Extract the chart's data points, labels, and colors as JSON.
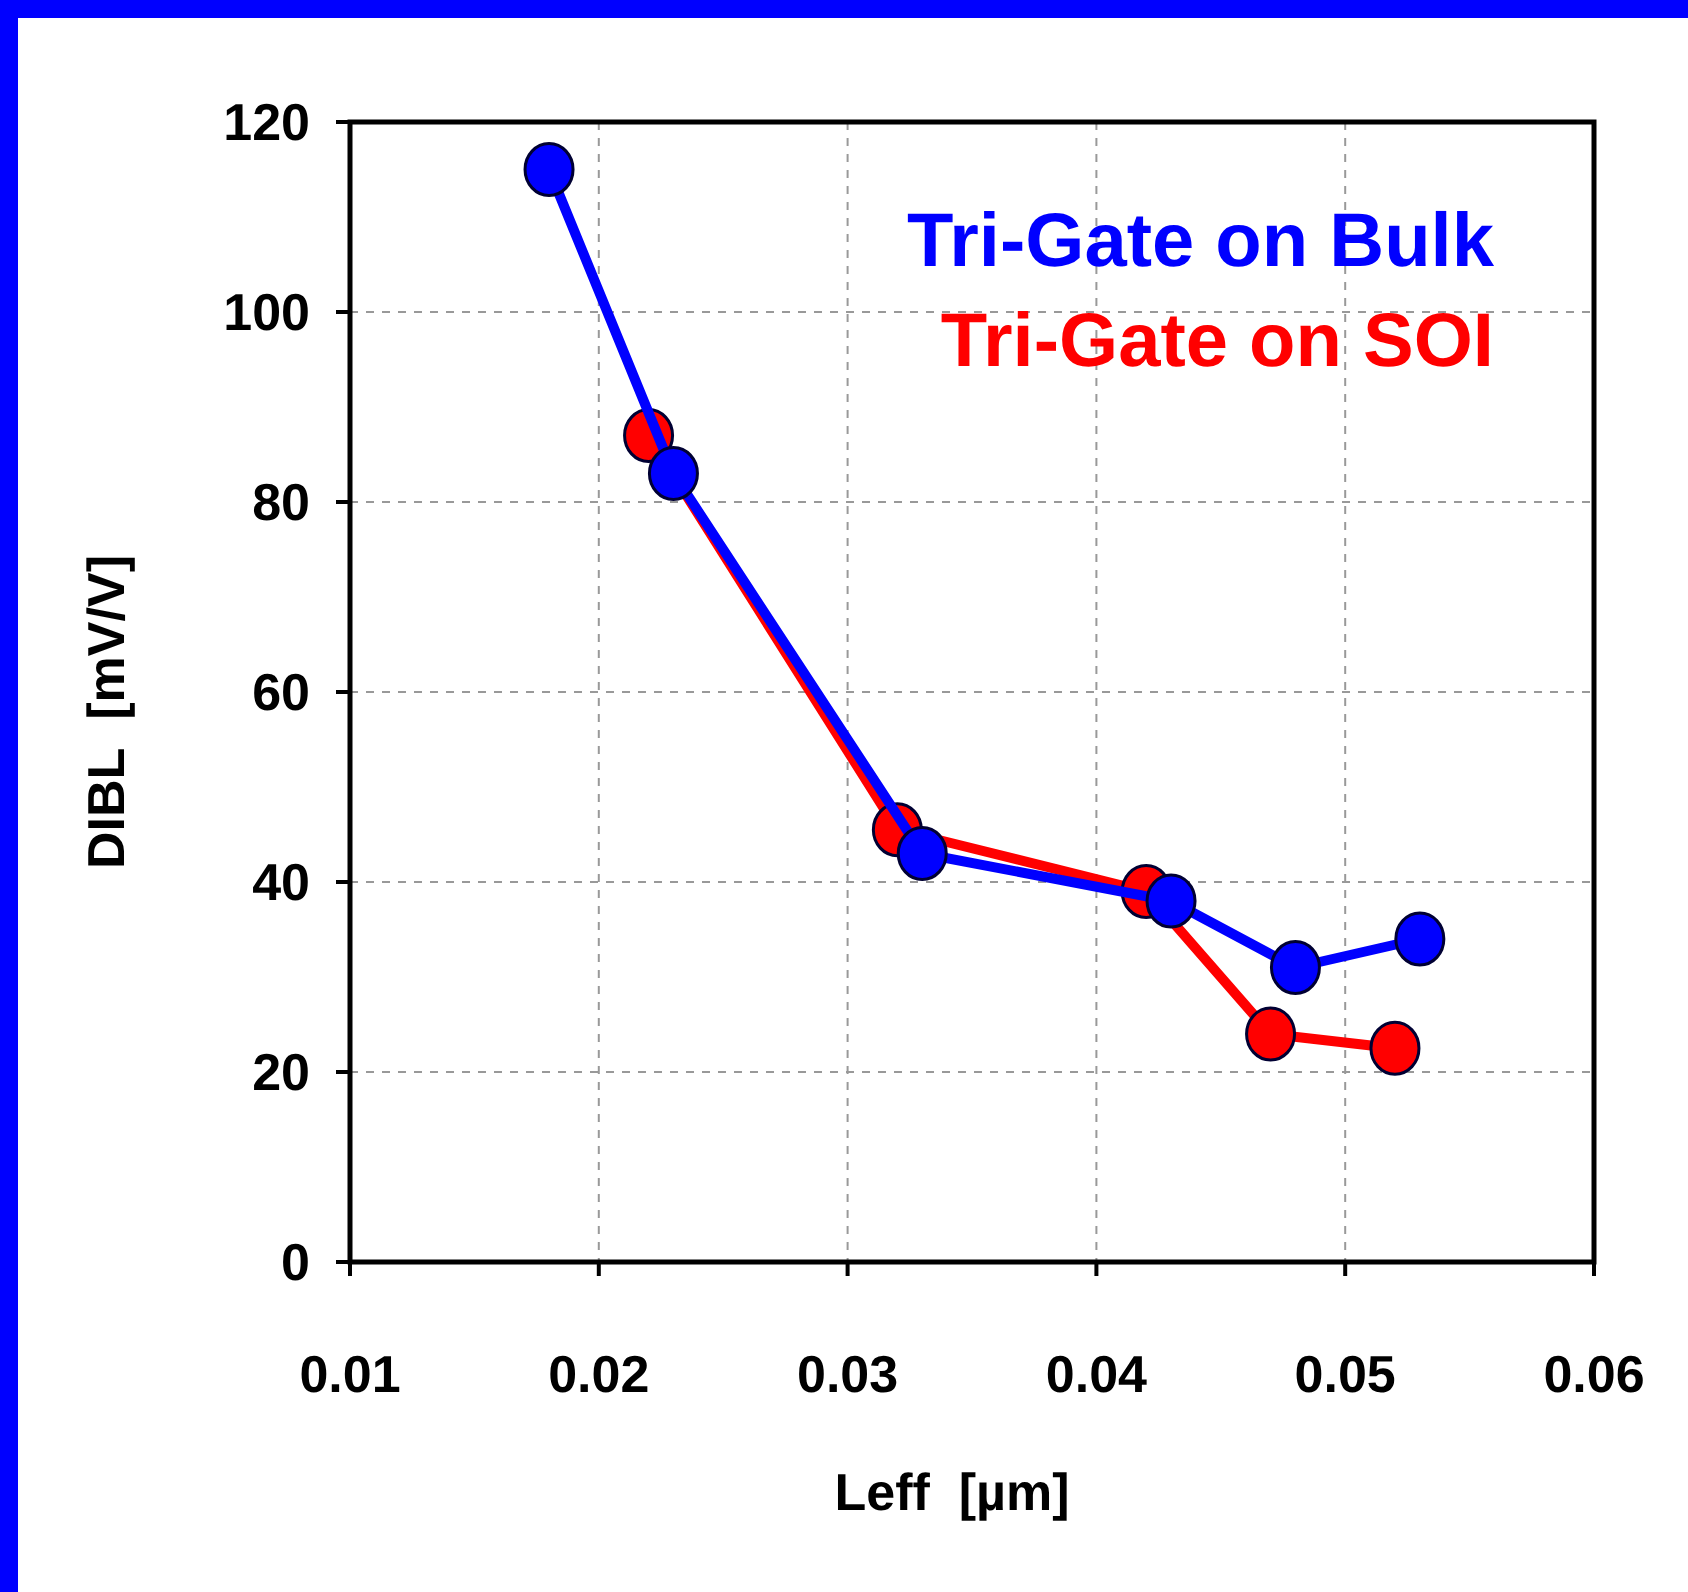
{
  "chart_data": {
    "type": "line",
    "xlabel": "Leff  [µm]",
    "ylabel": "DIBL  [mV/V]",
    "xlim": [
      0.01,
      0.06
    ],
    "xticks": [
      0.01,
      0.02,
      0.03,
      0.04,
      0.05,
      0.06
    ],
    "ylim": [
      0,
      120
    ],
    "yticks": [
      0,
      20,
      40,
      60,
      80,
      100,
      120
    ],
    "grid": true,
    "legend": "top right",
    "marker": "circle",
    "series": [
      {
        "name": "Tri-Gate on SOI",
        "color": "#ff0000",
        "x": [
          0.022,
          0.032,
          0.042,
          0.047,
          0.052
        ],
        "values": [
          87,
          45.5,
          39,
          24,
          22.5
        ]
      },
      {
        "name": "Tri-Gate on Bulk",
        "color": "#0000ff",
        "x": [
          0.018,
          0.023,
          0.033,
          0.043,
          0.048,
          0.053
        ],
        "values": [
          115,
          83,
          43,
          38,
          31,
          34
        ]
      }
    ]
  }
}
